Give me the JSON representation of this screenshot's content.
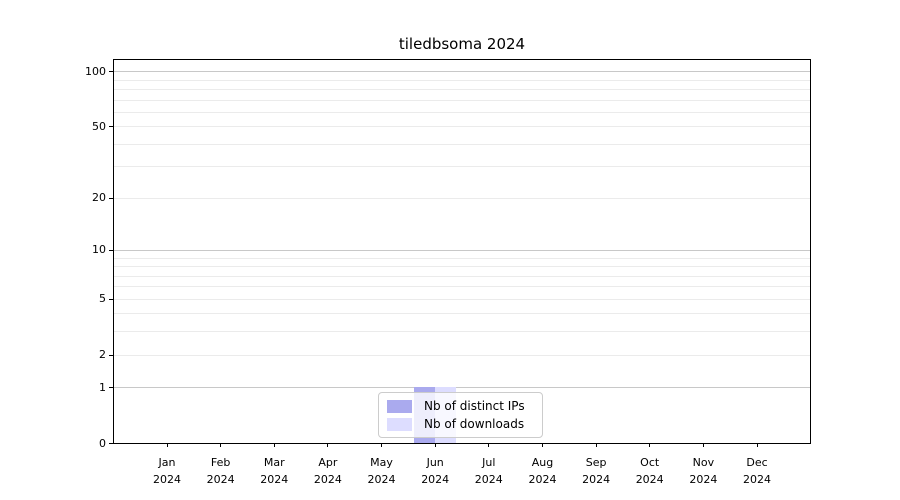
{
  "title": "tiledbsoma 2024",
  "chart_data": {
    "type": "bar",
    "title": "tiledbsoma 2024",
    "x_categories": [
      "Jan",
      "Feb",
      "Mar",
      "Apr",
      "May",
      "Jun",
      "Jul",
      "Aug",
      "Sep",
      "Oct",
      "Nov",
      "Dec"
    ],
    "x_year_label": "2024",
    "series": [
      {
        "name": "Nb of distinct IPs",
        "color": "#aaaaee",
        "values": [
          0,
          0,
          0,
          0,
          0,
          1,
          0,
          0,
          0,
          0,
          0,
          0
        ]
      },
      {
        "name": "Nb of downloads",
        "color": "#ddddff",
        "values": [
          0,
          0,
          0,
          0,
          0,
          1,
          0,
          0,
          0,
          0,
          0,
          0
        ]
      }
    ],
    "y_scale": "log10(value+1)",
    "ylim": [
      0,
      115
    ],
    "y_ticks": [
      0,
      1,
      2,
      5,
      10,
      20,
      50,
      100
    ],
    "y_gridlines_major": [
      1,
      10,
      100
    ],
    "y_gridlines_minor": [
      2,
      3,
      4,
      5,
      6,
      7,
      8,
      9,
      20,
      30,
      40,
      50,
      60,
      70,
      80,
      90
    ],
    "grid": "horizontal",
    "legend_position": "lower-center"
  }
}
